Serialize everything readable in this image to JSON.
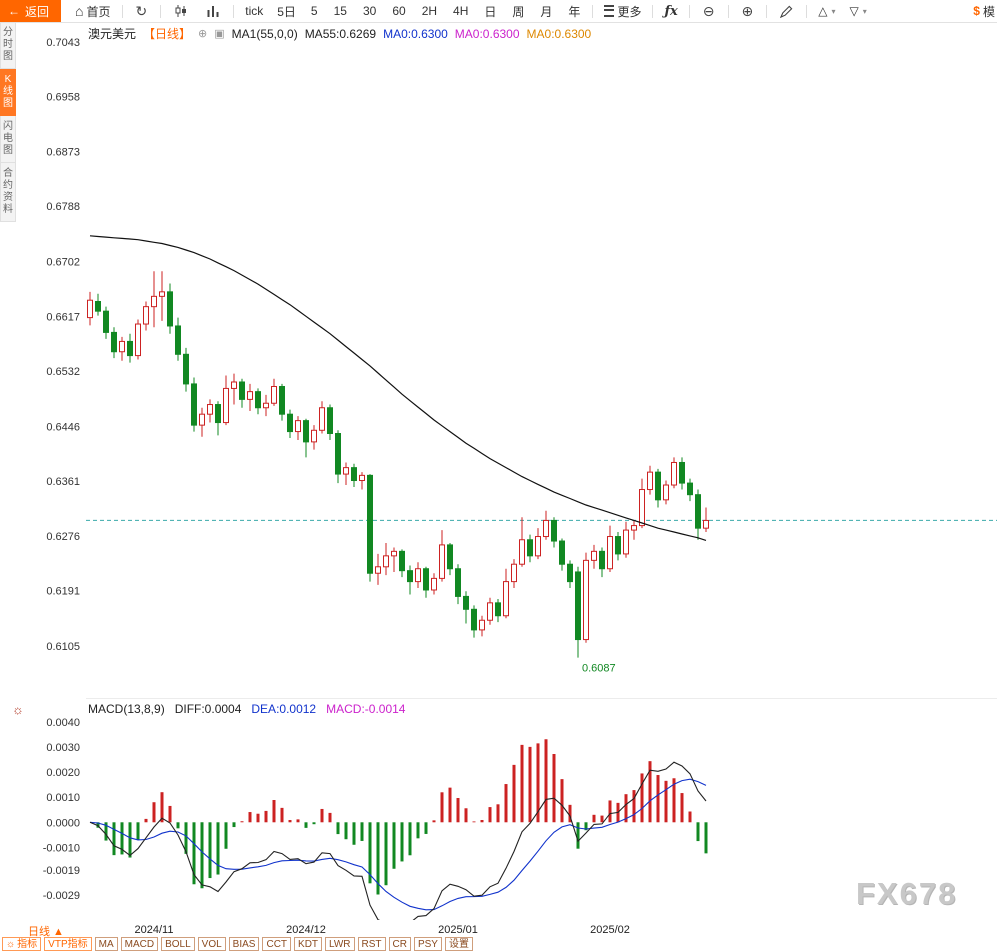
{
  "colors": {
    "accent_orange": "#ff6600",
    "up_red": "#cc2222",
    "down_green": "#118822",
    "ma_black": "#111111",
    "ref_teal": "#3aa9a9",
    "legend_blue": "#1133cc",
    "legend_magenta": "#cc22cc",
    "legend_orange": "#dd8800",
    "axis_text": "#333333"
  },
  "icons": {
    "back_arrow": "←",
    "home": "⌂",
    "refresh": "↻",
    "zoom_out": "⊖",
    "zoom_in": "⊕",
    "caret_down": "▾",
    "sun": "☼",
    "link": "⊕",
    "ma_settings": "▣"
  },
  "toolbar": {
    "back_label": "返回",
    "home_label": "首页",
    "tick_label": "tick",
    "d5_label": "5日",
    "intervals": [
      {
        "label": "5",
        "name": "interval-5"
      },
      {
        "label": "15",
        "name": "interval-15"
      },
      {
        "label": "30",
        "name": "interval-30"
      },
      {
        "label": "60",
        "name": "interval-60"
      },
      {
        "label": "2H",
        "name": "interval-2h"
      },
      {
        "label": "4H",
        "name": "interval-4h"
      },
      {
        "label": "日",
        "name": "interval-day"
      },
      {
        "label": "周",
        "name": "interval-week"
      },
      {
        "label": "月",
        "name": "interval-month"
      },
      {
        "label": "年",
        "name": "interval-year"
      }
    ],
    "more_label": "更多",
    "fx_label": "ƒx",
    "shape_up": "△",
    "shape_down": "▽",
    "model_prefix": "$",
    "model_label": "模"
  },
  "sidebar": {
    "items": [
      {
        "label": "分时图",
        "active": false,
        "name": "sidebar-item-time-chart"
      },
      {
        "label": "K线图",
        "active": true,
        "name": "sidebar-item-kline-chart"
      },
      {
        "label": "闪电图",
        "active": false,
        "name": "sidebar-item-lightning-chart"
      },
      {
        "label": "合约资料",
        "active": false,
        "name": "sidebar-item-contract-info"
      }
    ]
  },
  "price_panel": {
    "title": "澳元美元",
    "period_tag": "【日线】",
    "ma_label_1": "MA1(55,0,0)",
    "ma_label_2": "MA55:0.6269",
    "ma0_blue": "MA0:0.6300",
    "ma0_magenta": "MA0:0.6300",
    "ma0_orange": "MA0:0.6300"
  },
  "macd_panel": {
    "legend": "MACD(13,8,9)",
    "diff_label": "DIFF:0.0004",
    "dea_label": "DEA:0.0012",
    "macd_label": "MACD:-0.0014"
  },
  "bottom": {
    "period_label": "日线 ▲",
    "tabs": [
      {
        "label": "指标",
        "accent": true,
        "icon": "sun",
        "name": "tab-indicator"
      },
      {
        "label": "VTP指标",
        "accent": true,
        "name": "tab-vtp-indicator"
      },
      {
        "label": "MA",
        "name": "tab-ma"
      },
      {
        "label": "MACD",
        "name": "tab-macd"
      },
      {
        "label": "BOLL",
        "name": "tab-boll"
      },
      {
        "label": "VOL",
        "name": "tab-vol"
      },
      {
        "label": "BIAS",
        "name": "tab-bias"
      },
      {
        "label": "CCT",
        "name": "tab-cct"
      },
      {
        "label": "KDT",
        "name": "tab-kdt"
      },
      {
        "label": "LWR",
        "name": "tab-lwr"
      },
      {
        "label": "RST",
        "name": "tab-rst"
      },
      {
        "label": "CR",
        "name": "tab-cr"
      },
      {
        "label": "PSY",
        "name": "tab-psy"
      },
      {
        "label": "设置",
        "name": "tab-settings"
      }
    ]
  },
  "watermark": "FX678",
  "chart_data": [
    {
      "type": "candlestick",
      "symbol": "澳元美元",
      "interval": "日线",
      "y_ticks": [
        0.7043,
        0.6958,
        0.6873,
        0.6788,
        0.6702,
        0.6617,
        0.6532,
        0.6446,
        0.6361,
        0.6276,
        0.6191,
        0.6105
      ],
      "x_ticks": [
        {
          "label": "2024/11",
          "index": 8
        },
        {
          "label": "2024/12",
          "index": 27
        },
        {
          "label": "2025/01",
          "index": 46
        },
        {
          "label": "2025/02",
          "index": 65
        }
      ],
      "ref_line": 0.63,
      "annotation": {
        "label": "0.6087",
        "index": 61,
        "value": 0.6087
      },
      "ma55_last": 0.6269,
      "ma55": [
        0.6742,
        0.6741,
        0.674,
        0.6739,
        0.6738,
        0.6737,
        0.6736,
        0.6734,
        0.6732,
        0.673,
        0.6727,
        0.6724,
        0.672,
        0.6716,
        0.6711,
        0.6706,
        0.67,
        0.6694,
        0.6688,
        0.6681,
        0.6674,
        0.6667,
        0.6659,
        0.6651,
        0.6643,
        0.6635,
        0.6626,
        0.6617,
        0.6608,
        0.6599,
        0.659,
        0.658,
        0.657,
        0.656,
        0.655,
        0.654,
        0.6529,
        0.6518,
        0.6507,
        0.6496,
        0.6486,
        0.6476,
        0.6466,
        0.6456,
        0.6447,
        0.6438,
        0.6429,
        0.642,
        0.6412,
        0.6404,
        0.6396,
        0.6389,
        0.6382,
        0.6375,
        0.6368,
        0.6362,
        0.6356,
        0.635,
        0.6344,
        0.6339,
        0.6334,
        0.6329,
        0.6324,
        0.632,
        0.6316,
        0.6312,
        0.6308,
        0.6304,
        0.63,
        0.6296,
        0.6292,
        0.6288,
        0.6285,
        0.6282,
        0.6279,
        0.6276,
        0.6273,
        0.6269
      ],
      "ohlc": [
        [
          0.6615,
          0.6655,
          0.6603,
          0.6642
        ],
        [
          0.664,
          0.6652,
          0.6618,
          0.6625
        ],
        [
          0.6625,
          0.6632,
          0.6582,
          0.6592
        ],
        [
          0.6592,
          0.66,
          0.6552,
          0.6562
        ],
        [
          0.6562,
          0.6585,
          0.6548,
          0.6578
        ],
        [
          0.6578,
          0.659,
          0.6545,
          0.6556
        ],
        [
          0.6556,
          0.6612,
          0.655,
          0.6605
        ],
        [
          0.6605,
          0.664,
          0.6595,
          0.6632
        ],
        [
          0.6632,
          0.6687,
          0.66,
          0.6648
        ],
        [
          0.6648,
          0.6687,
          0.661,
          0.6655
        ],
        [
          0.6655,
          0.6668,
          0.659,
          0.6602
        ],
        [
          0.6602,
          0.6615,
          0.6548,
          0.6558
        ],
        [
          0.6558,
          0.6568,
          0.65,
          0.6512
        ],
        [
          0.6512,
          0.6522,
          0.6438,
          0.6448
        ],
        [
          0.6448,
          0.6475,
          0.643,
          0.6465
        ],
        [
          0.6465,
          0.6488,
          0.6452,
          0.648
        ],
        [
          0.648,
          0.6485,
          0.6432,
          0.6452
        ],
        [
          0.6452,
          0.6525,
          0.6448,
          0.6505
        ],
        [
          0.6505,
          0.6528,
          0.648,
          0.6515
        ],
        [
          0.6515,
          0.652,
          0.6475,
          0.6488
        ],
        [
          0.6488,
          0.6512,
          0.647,
          0.65
        ],
        [
          0.65,
          0.6505,
          0.6465,
          0.6475
        ],
        [
          0.6475,
          0.6495,
          0.6462,
          0.6482
        ],
        [
          0.6482,
          0.652,
          0.6478,
          0.6508
        ],
        [
          0.6508,
          0.6512,
          0.6455,
          0.6465
        ],
        [
          0.6465,
          0.6472,
          0.6428,
          0.6438
        ],
        [
          0.6438,
          0.6462,
          0.6425,
          0.6455
        ],
        [
          0.6455,
          0.6458,
          0.6398,
          0.6422
        ],
        [
          0.6422,
          0.6448,
          0.641,
          0.644
        ],
        [
          0.644,
          0.6485,
          0.6435,
          0.6475
        ],
        [
          0.6475,
          0.648,
          0.6425,
          0.6435
        ],
        [
          0.6435,
          0.644,
          0.6358,
          0.6372
        ],
        [
          0.6372,
          0.639,
          0.6355,
          0.6382
        ],
        [
          0.6382,
          0.6388,
          0.6352,
          0.6362
        ],
        [
          0.6362,
          0.6375,
          0.6348,
          0.637
        ],
        [
          0.637,
          0.6372,
          0.6205,
          0.6218
        ],
        [
          0.6218,
          0.6248,
          0.62,
          0.6228
        ],
        [
          0.6228,
          0.6265,
          0.6215,
          0.6245
        ],
        [
          0.6245,
          0.6258,
          0.622,
          0.6252
        ],
        [
          0.6252,
          0.6255,
          0.6212,
          0.6222
        ],
        [
          0.6222,
          0.623,
          0.6185,
          0.6205
        ],
        [
          0.6205,
          0.6235,
          0.6195,
          0.6225
        ],
        [
          0.6225,
          0.6228,
          0.618,
          0.6192
        ],
        [
          0.6192,
          0.6218,
          0.6185,
          0.621
        ],
        [
          0.621,
          0.6285,
          0.6205,
          0.6262
        ],
        [
          0.6262,
          0.6265,
          0.6215,
          0.6225
        ],
        [
          0.6225,
          0.6232,
          0.617,
          0.6182
        ],
        [
          0.6182,
          0.619,
          0.614,
          0.6162
        ],
        [
          0.6162,
          0.6168,
          0.6118,
          0.613
        ],
        [
          0.613,
          0.6152,
          0.612,
          0.6145
        ],
        [
          0.6145,
          0.618,
          0.6138,
          0.6172
        ],
        [
          0.6172,
          0.6178,
          0.6142,
          0.6152
        ],
        [
          0.6152,
          0.6225,
          0.6148,
          0.6205
        ],
        [
          0.6205,
          0.624,
          0.6195,
          0.6232
        ],
        [
          0.6232,
          0.6305,
          0.6228,
          0.627
        ],
        [
          0.627,
          0.6278,
          0.6235,
          0.6245
        ],
        [
          0.6245,
          0.6288,
          0.624,
          0.6275
        ],
        [
          0.6275,
          0.6315,
          0.627,
          0.63
        ],
        [
          0.63,
          0.6305,
          0.6258,
          0.6268
        ],
        [
          0.6268,
          0.6272,
          0.6222,
          0.6232
        ],
        [
          0.6232,
          0.6238,
          0.6195,
          0.6205
        ],
        [
          0.622,
          0.6228,
          0.6087,
          0.6115
        ],
        [
          0.6115,
          0.625,
          0.611,
          0.6238
        ],
        [
          0.6238,
          0.6262,
          0.6225,
          0.6252
        ],
        [
          0.6252,
          0.6258,
          0.6212,
          0.6225
        ],
        [
          0.6225,
          0.6292,
          0.622,
          0.6275
        ],
        [
          0.6275,
          0.6282,
          0.6238,
          0.6248
        ],
        [
          0.6248,
          0.6298,
          0.6242,
          0.6285
        ],
        [
          0.6285,
          0.63,
          0.627,
          0.6292
        ],
        [
          0.6292,
          0.6365,
          0.6288,
          0.6348
        ],
        [
          0.6348,
          0.6385,
          0.634,
          0.6375
        ],
        [
          0.6375,
          0.638,
          0.632,
          0.6332
        ],
        [
          0.6332,
          0.6362,
          0.6325,
          0.6355
        ],
        [
          0.6355,
          0.6398,
          0.635,
          0.639
        ],
        [
          0.639,
          0.6398,
          0.6348,
          0.6358
        ],
        [
          0.6358,
          0.6365,
          0.633,
          0.634
        ],
        [
          0.634,
          0.6348,
          0.627,
          0.6288
        ],
        [
          0.6288,
          0.632,
          0.6282,
          0.63
        ]
      ]
    },
    {
      "type": "macd",
      "params": [
        13,
        8,
        9
      ],
      "y_ticks": [
        0.004,
        0.003,
        0.002,
        0.001,
        0.0,
        -0.001,
        -0.0019,
        -0.0029
      ],
      "latest": {
        "diff": 0.0004,
        "dea": 0.0012,
        "macd": -0.0014
      }
    }
  ]
}
